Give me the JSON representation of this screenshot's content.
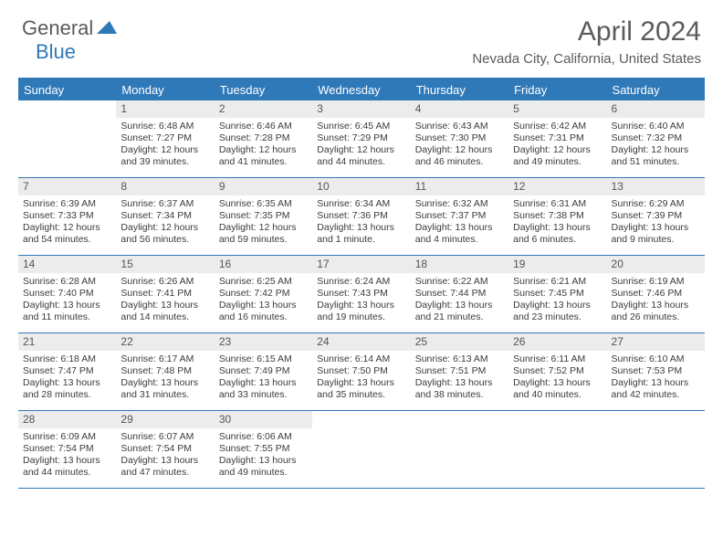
{
  "logo": {
    "general": "General",
    "blue": "Blue"
  },
  "title": "April 2024",
  "location": "Nevada City, California, United States",
  "colors": {
    "accent": "#2f79b9",
    "header_text": "#ffffff",
    "body_text": "#3b3b3b",
    "muted_text": "#5b5b5b",
    "day_number_bg": "#ececec",
    "background": "#ffffff"
  },
  "day_names": [
    "Sunday",
    "Monday",
    "Tuesday",
    "Wednesday",
    "Thursday",
    "Friday",
    "Saturday"
  ],
  "weeks": [
    [
      {
        "n": "",
        "sr": "",
        "ss": "",
        "dl": ""
      },
      {
        "n": "1",
        "sr": "Sunrise: 6:48 AM",
        "ss": "Sunset: 7:27 PM",
        "dl": "Daylight: 12 hours and 39 minutes."
      },
      {
        "n": "2",
        "sr": "Sunrise: 6:46 AM",
        "ss": "Sunset: 7:28 PM",
        "dl": "Daylight: 12 hours and 41 minutes."
      },
      {
        "n": "3",
        "sr": "Sunrise: 6:45 AM",
        "ss": "Sunset: 7:29 PM",
        "dl": "Daylight: 12 hours and 44 minutes."
      },
      {
        "n": "4",
        "sr": "Sunrise: 6:43 AM",
        "ss": "Sunset: 7:30 PM",
        "dl": "Daylight: 12 hours and 46 minutes."
      },
      {
        "n": "5",
        "sr": "Sunrise: 6:42 AM",
        "ss": "Sunset: 7:31 PM",
        "dl": "Daylight: 12 hours and 49 minutes."
      },
      {
        "n": "6",
        "sr": "Sunrise: 6:40 AM",
        "ss": "Sunset: 7:32 PM",
        "dl": "Daylight: 12 hours and 51 minutes."
      }
    ],
    [
      {
        "n": "7",
        "sr": "Sunrise: 6:39 AM",
        "ss": "Sunset: 7:33 PM",
        "dl": "Daylight: 12 hours and 54 minutes."
      },
      {
        "n": "8",
        "sr": "Sunrise: 6:37 AM",
        "ss": "Sunset: 7:34 PM",
        "dl": "Daylight: 12 hours and 56 minutes."
      },
      {
        "n": "9",
        "sr": "Sunrise: 6:35 AM",
        "ss": "Sunset: 7:35 PM",
        "dl": "Daylight: 12 hours and 59 minutes."
      },
      {
        "n": "10",
        "sr": "Sunrise: 6:34 AM",
        "ss": "Sunset: 7:36 PM",
        "dl": "Daylight: 13 hours and 1 minute."
      },
      {
        "n": "11",
        "sr": "Sunrise: 6:32 AM",
        "ss": "Sunset: 7:37 PM",
        "dl": "Daylight: 13 hours and 4 minutes."
      },
      {
        "n": "12",
        "sr": "Sunrise: 6:31 AM",
        "ss": "Sunset: 7:38 PM",
        "dl": "Daylight: 13 hours and 6 minutes."
      },
      {
        "n": "13",
        "sr": "Sunrise: 6:29 AM",
        "ss": "Sunset: 7:39 PM",
        "dl": "Daylight: 13 hours and 9 minutes."
      }
    ],
    [
      {
        "n": "14",
        "sr": "Sunrise: 6:28 AM",
        "ss": "Sunset: 7:40 PM",
        "dl": "Daylight: 13 hours and 11 minutes."
      },
      {
        "n": "15",
        "sr": "Sunrise: 6:26 AM",
        "ss": "Sunset: 7:41 PM",
        "dl": "Daylight: 13 hours and 14 minutes."
      },
      {
        "n": "16",
        "sr": "Sunrise: 6:25 AM",
        "ss": "Sunset: 7:42 PM",
        "dl": "Daylight: 13 hours and 16 minutes."
      },
      {
        "n": "17",
        "sr": "Sunrise: 6:24 AM",
        "ss": "Sunset: 7:43 PM",
        "dl": "Daylight: 13 hours and 19 minutes."
      },
      {
        "n": "18",
        "sr": "Sunrise: 6:22 AM",
        "ss": "Sunset: 7:44 PM",
        "dl": "Daylight: 13 hours and 21 minutes."
      },
      {
        "n": "19",
        "sr": "Sunrise: 6:21 AM",
        "ss": "Sunset: 7:45 PM",
        "dl": "Daylight: 13 hours and 23 minutes."
      },
      {
        "n": "20",
        "sr": "Sunrise: 6:19 AM",
        "ss": "Sunset: 7:46 PM",
        "dl": "Daylight: 13 hours and 26 minutes."
      }
    ],
    [
      {
        "n": "21",
        "sr": "Sunrise: 6:18 AM",
        "ss": "Sunset: 7:47 PM",
        "dl": "Daylight: 13 hours and 28 minutes."
      },
      {
        "n": "22",
        "sr": "Sunrise: 6:17 AM",
        "ss": "Sunset: 7:48 PM",
        "dl": "Daylight: 13 hours and 31 minutes."
      },
      {
        "n": "23",
        "sr": "Sunrise: 6:15 AM",
        "ss": "Sunset: 7:49 PM",
        "dl": "Daylight: 13 hours and 33 minutes."
      },
      {
        "n": "24",
        "sr": "Sunrise: 6:14 AM",
        "ss": "Sunset: 7:50 PM",
        "dl": "Daylight: 13 hours and 35 minutes."
      },
      {
        "n": "25",
        "sr": "Sunrise: 6:13 AM",
        "ss": "Sunset: 7:51 PM",
        "dl": "Daylight: 13 hours and 38 minutes."
      },
      {
        "n": "26",
        "sr": "Sunrise: 6:11 AM",
        "ss": "Sunset: 7:52 PM",
        "dl": "Daylight: 13 hours and 40 minutes."
      },
      {
        "n": "27",
        "sr": "Sunrise: 6:10 AM",
        "ss": "Sunset: 7:53 PM",
        "dl": "Daylight: 13 hours and 42 minutes."
      }
    ],
    [
      {
        "n": "28",
        "sr": "Sunrise: 6:09 AM",
        "ss": "Sunset: 7:54 PM",
        "dl": "Daylight: 13 hours and 44 minutes."
      },
      {
        "n": "29",
        "sr": "Sunrise: 6:07 AM",
        "ss": "Sunset: 7:54 PM",
        "dl": "Daylight: 13 hours and 47 minutes."
      },
      {
        "n": "30",
        "sr": "Sunrise: 6:06 AM",
        "ss": "Sunset: 7:55 PM",
        "dl": "Daylight: 13 hours and 49 minutes."
      },
      {
        "n": "",
        "sr": "",
        "ss": "",
        "dl": ""
      },
      {
        "n": "",
        "sr": "",
        "ss": "",
        "dl": ""
      },
      {
        "n": "",
        "sr": "",
        "ss": "",
        "dl": ""
      },
      {
        "n": "",
        "sr": "",
        "ss": "",
        "dl": ""
      }
    ]
  ]
}
